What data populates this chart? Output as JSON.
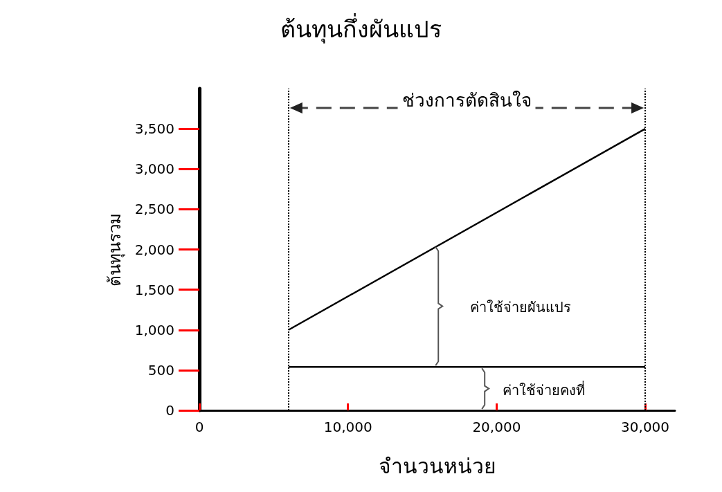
{
  "chart_data": {
    "type": "line",
    "title": "ต้นทุนกึ่งผันแปร",
    "xlabel": "จำนวนหน่วย",
    "ylabel": "ต้นทุนรวม",
    "xlim": [
      0,
      32000
    ],
    "xticks": [
      0,
      {
        "value": 10000,
        "label": "10,000"
      },
      {
        "value": 20000,
        "label": "20,000"
      },
      {
        "value": 30000,
        "label": "30,000"
      }
    ],
    "ylim": [
      0,
      4000
    ],
    "yticks": [
      0,
      500,
      {
        "value": 1000,
        "label": "1,000"
      },
      {
        "value": 1500,
        "label": "1,500"
      },
      {
        "value": 2000,
        "label": "2,000"
      },
      {
        "value": 2500,
        "label": "2,500"
      },
      {
        "value": 3000,
        "label": "3,000"
      },
      {
        "value": 3500,
        "label": "3,500"
      }
    ],
    "x": [
      6000,
      30000
    ],
    "series": [
      {
        "color": "#000000",
        "values": [
          1000,
          3500
        ]
      },
      {
        "color": "#000000",
        "values": [
          540,
          540
        ]
      }
    ],
    "ref_lines": [
      {
        "axis": "x",
        "value": 6000,
        "line_style": "dotted",
        "color": "#000000"
      },
      {
        "axis": "x",
        "value": 30000,
        "line_style": "dotted",
        "color": "#000000"
      }
    ],
    "annotations": [
      "ช่วงการตัดสินใจ",
      "ค่าใช้จ่ายผันแปร",
      "ค่าใช้จ่ายคงที่"
    ],
    "grid": false,
    "marker": "none",
    "line_style": "solid"
  }
}
